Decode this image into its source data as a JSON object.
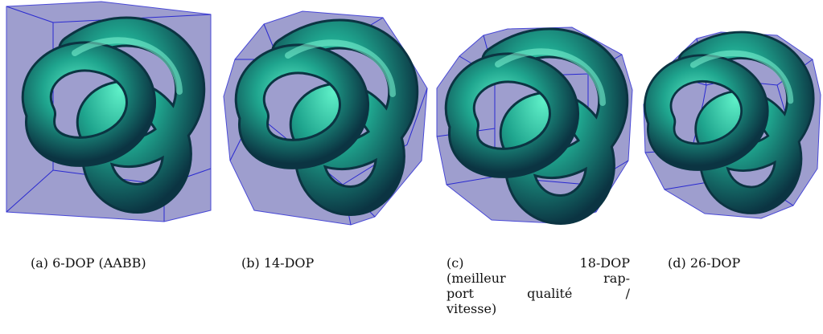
{
  "figure": {
    "panels": [
      {
        "id": "a",
        "caption": "(a) 6-DOP (AABB)"
      },
      {
        "id": "b",
        "caption": "(b) 14-DOP"
      },
      {
        "id": "c",
        "caption_lines": [
          "(c)",
          "18-DOP",
          "(meilleur",
          "rap-",
          "port",
          "qualité",
          "/",
          "vitesse)"
        ]
      },
      {
        "id": "d",
        "caption": "(d) 26-DOP"
      }
    ],
    "colors": {
      "hull_fill": "#8e8ec6",
      "hull_edge": "#2a2ad0",
      "knot_light": "#3fe3b8",
      "knot_mid": "#1f9f8c",
      "knot_dark": "#0d3d4a"
    }
  }
}
